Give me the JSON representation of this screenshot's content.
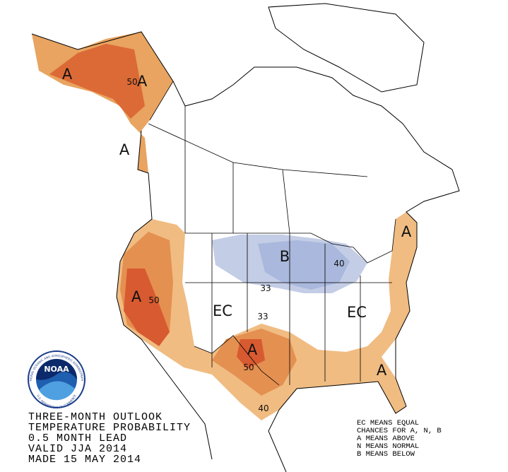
{
  "map_labels": [
    "A",
    "50",
    "A",
    "A",
    "B",
    "40",
    "33",
    "A",
    "50",
    "EC",
    "33",
    "EC",
    "A",
    "A",
    "50",
    "A",
    "40"
  ],
  "title_lines": [
    "THREE-MONTH OUTLOOK",
    "TEMPERATURE PROBABILITY",
    "0.5 MONTH LEAD",
    "VALID JJA 2014",
    "MADE 15 MAY 2014"
  ],
  "legend_lines": [
    "EC MEANS EQUAL",
    "CHANCES FOR A, N, B",
    "A MEANS ABOVE",
    "N MEANS NORMAL",
    "B MEANS BELOW"
  ],
  "logo": {
    "name": "NOAA",
    "ring_top": "NATIONAL OCEANIC AND ATMOSPHERIC ADMINISTRATION",
    "ring_bottom": "U.S. DEPARTMENT OF COMMERCE"
  }
}
